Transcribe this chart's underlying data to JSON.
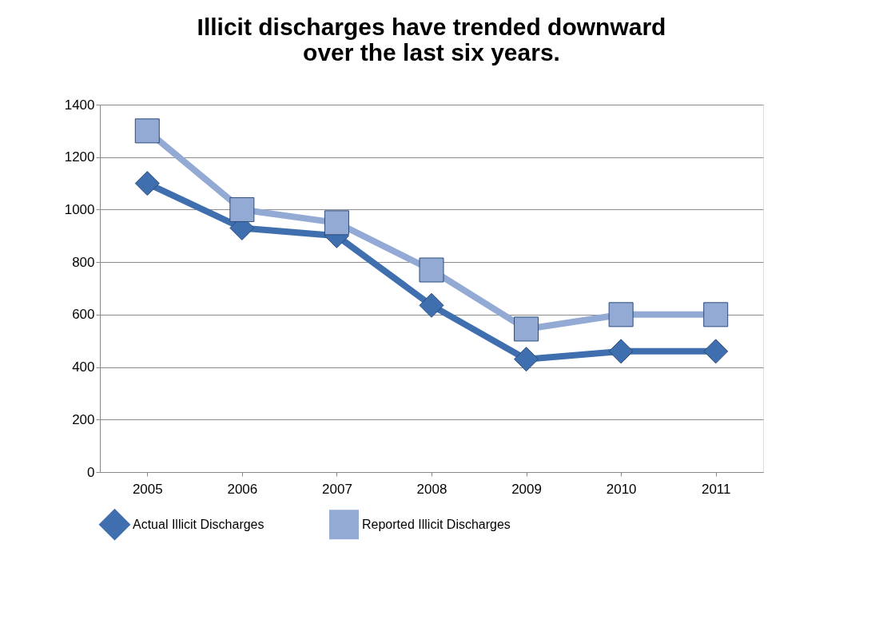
{
  "chart_data": {
    "type": "line",
    "title": [
      "Illicit discharges have trended downward",
      "over the last six years."
    ],
    "categories": [
      "2005",
      "2006",
      "2007",
      "2008",
      "2009",
      "2010",
      "2011"
    ],
    "series": [
      {
        "name": "Actual Illicit Discharges",
        "color": "#3f6fae",
        "marker": "diamond",
        "values": [
          1100,
          930,
          900,
          635,
          430,
          460,
          460
        ]
      },
      {
        "name": "Reported Illicit Discharges",
        "color": "#93abd4",
        "marker": "square",
        "values": [
          1300,
          1000,
          950,
          770,
          545,
          600,
          600
        ]
      }
    ],
    "ylim": [
      0,
      1400
    ],
    "yticks": [
      0,
      200,
      400,
      600,
      800,
      1000,
      1200,
      1400
    ],
    "grid": "y",
    "legend": "bottom"
  }
}
